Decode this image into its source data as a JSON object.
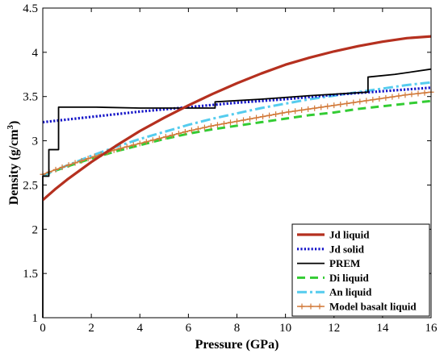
{
  "chart_data": {
    "type": "line",
    "title": "",
    "xlabel": "Pressure (GPa)",
    "ylabel_main": "Density (g/cm",
    "ylabel_sup": "3",
    "ylabel_end": ")",
    "xlim": [
      0,
      16
    ],
    "ylim": [
      1,
      4.5
    ],
    "xticks": [
      "0",
      "2",
      "4",
      "6",
      "8",
      "10",
      "12",
      "14",
      "16"
    ],
    "yticks": [
      "1",
      "1.5",
      "2",
      "2.5",
      "3",
      "3.5",
      "4",
      "4.5"
    ],
    "grid": false,
    "legend_position": "bottom-right",
    "series": [
      {
        "name": "Jd liquid",
        "color": "#b5301f",
        "style": "solid-thick",
        "x": [
          0,
          0.5,
          1,
          2,
          3,
          4,
          5,
          6,
          7,
          8,
          9,
          10,
          11,
          12,
          13,
          14,
          15,
          16
        ],
        "y": [
          2.33,
          2.45,
          2.56,
          2.76,
          2.94,
          3.11,
          3.26,
          3.4,
          3.53,
          3.65,
          3.76,
          3.86,
          3.94,
          4.01,
          4.07,
          4.12,
          4.16,
          4.18
        ]
      },
      {
        "name": "Jd solid",
        "color": "#1414c8",
        "style": "dotted",
        "x": [
          0,
          2,
          4,
          6,
          8,
          10,
          12,
          14,
          16
        ],
        "y": [
          3.21,
          3.27,
          3.33,
          3.38,
          3.43,
          3.47,
          3.52,
          3.56,
          3.6
        ]
      },
      {
        "name": "PREM",
        "color": "#000000",
        "style": "solid",
        "x": [
          0,
          0,
          0.25,
          0.25,
          0.5,
          0.5,
          0.65,
          0.65,
          2.2,
          4,
          6,
          7.1,
          7.1,
          9,
          11,
          13.4,
          13.4,
          14.5,
          16
        ],
        "y": [
          1.0,
          2.6,
          2.6,
          2.9,
          2.9,
          2.9,
          2.9,
          3.38,
          3.38,
          3.37,
          3.37,
          3.37,
          3.44,
          3.47,
          3.51,
          3.55,
          3.72,
          3.75,
          3.81
        ]
      },
      {
        "name": "Di liquid",
        "color": "#33cc33",
        "style": "dashed",
        "x": [
          0,
          1,
          2,
          3,
          4,
          5,
          6,
          7,
          8,
          9,
          10,
          11,
          12,
          13,
          14,
          15,
          16
        ],
        "y": [
          2.61,
          2.71,
          2.8,
          2.88,
          2.95,
          3.02,
          3.08,
          3.13,
          3.17,
          3.21,
          3.25,
          3.29,
          3.32,
          3.36,
          3.39,
          3.42,
          3.45
        ]
      },
      {
        "name": "An liquid",
        "color": "#55ccee",
        "style": "dashdot",
        "x": [
          0,
          1,
          2,
          3,
          4,
          5,
          6,
          7,
          8,
          9,
          10,
          11,
          12,
          13,
          14,
          15,
          16
        ],
        "y": [
          2.61,
          2.72,
          2.83,
          2.93,
          3.02,
          3.1,
          3.18,
          3.25,
          3.31,
          3.37,
          3.42,
          3.47,
          3.51,
          3.55,
          3.59,
          3.63,
          3.66
        ]
      },
      {
        "name": "Model basalt liquid",
        "color": "#d27a3a",
        "style": "solid-cross",
        "x": [
          0,
          1,
          2,
          3,
          4,
          5,
          6,
          7,
          8,
          9,
          10,
          11,
          12,
          13,
          14,
          15,
          16
        ],
        "y": [
          2.62,
          2.72,
          2.81,
          2.9,
          2.97,
          3.04,
          3.11,
          3.17,
          3.22,
          3.27,
          3.32,
          3.36,
          3.4,
          3.44,
          3.48,
          3.52,
          3.55
        ]
      }
    ]
  }
}
